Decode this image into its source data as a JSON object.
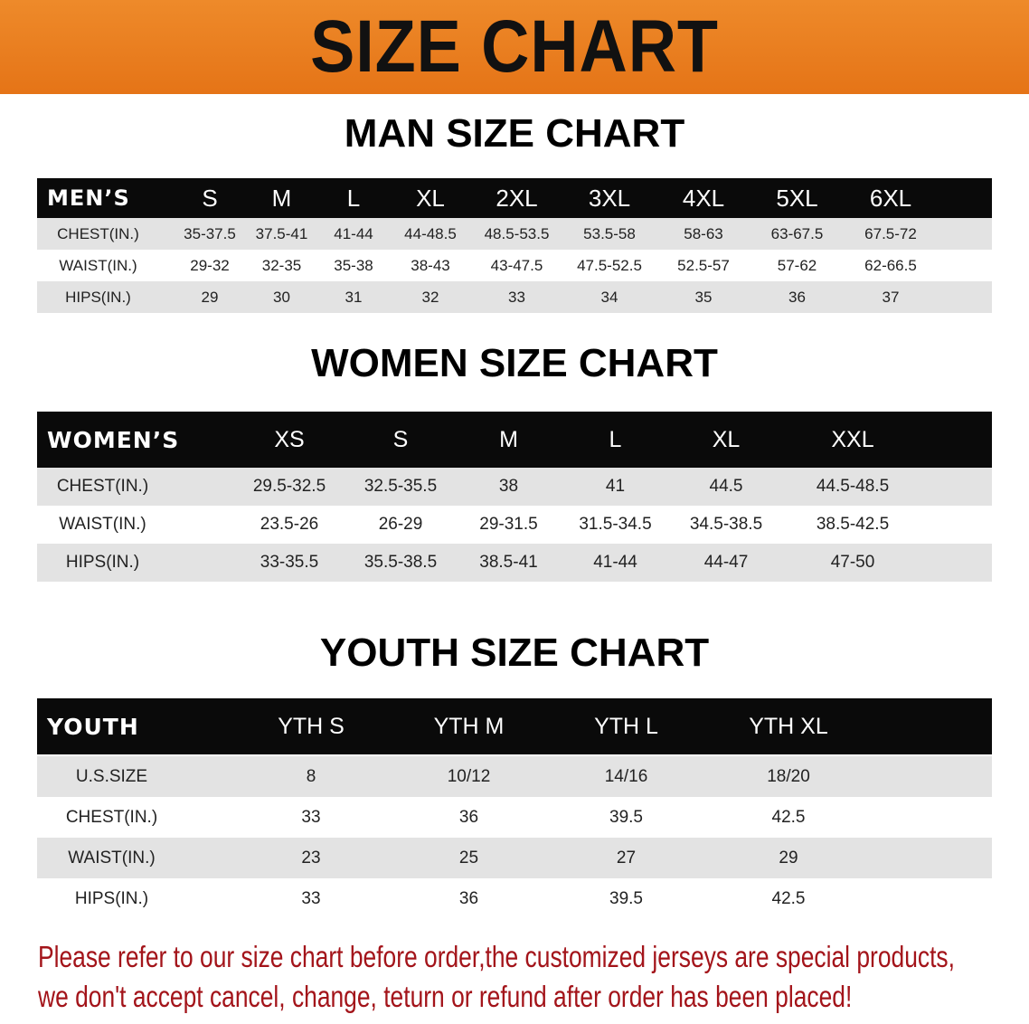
{
  "banner_title": "SIZE CHART",
  "colors": {
    "banner": "#e8781a",
    "header_row": "#0a0a0a",
    "shaded_row": "#e3e3e3",
    "notice_text": "#a3141a"
  },
  "men": {
    "title": "MAN SIZE CHART",
    "header": [
      "MEN’S",
      "S",
      "M",
      "L",
      "XL",
      "2XL",
      "3XL",
      "4XL",
      "5XL",
      "6XL"
    ],
    "rows": [
      [
        "CHEST(IN.)",
        "35-37.5",
        "37.5-41",
        "41-44",
        "44-48.5",
        "48.5-53.5",
        "53.5-58",
        "58-63",
        "63-67.5",
        "67.5-72"
      ],
      [
        "WAIST(IN.)",
        "29-32",
        "32-35",
        "35-38",
        "38-43",
        "43-47.5",
        "47.5-52.5",
        "52.5-57",
        "57-62",
        "62-66.5"
      ],
      [
        "HIPS(IN.)",
        "29",
        "30",
        "31",
        "32",
        "33",
        "34",
        "35",
        "36",
        "37"
      ]
    ]
  },
  "women": {
    "title": "WOMEN SIZE CHART",
    "header": [
      "WOMEN’S",
      "XS",
      "S",
      "M",
      "L",
      "XL",
      "XXL"
    ],
    "rows": [
      [
        "CHEST(IN.)",
        "29.5-32.5",
        "32.5-35.5",
        "38",
        "41",
        "44.5",
        "44.5-48.5"
      ],
      [
        "WAIST(IN.)",
        "23.5-26",
        "26-29",
        "29-31.5",
        "31.5-34.5",
        "34.5-38.5",
        "38.5-42.5"
      ],
      [
        "HIPS(IN.)",
        "33-35.5",
        "35.5-38.5",
        "38.5-41",
        "41-44",
        "44-47",
        "47-50"
      ]
    ]
  },
  "youth": {
    "title": "YOUTH SIZE CHART",
    "header": [
      "YOUTH",
      "YTH S",
      "YTH M",
      "YTH L",
      "YTH XL"
    ],
    "rows": [
      [
        "U.S.SIZE",
        "8",
        "10/12",
        "14/16",
        "18/20"
      ],
      [
        "CHEST(IN.)",
        "33",
        "36",
        "39.5",
        "42.5"
      ],
      [
        "WAIST(IN.)",
        "23",
        "25",
        "27",
        "29"
      ],
      [
        "HIPS(IN.)",
        "33",
        "36",
        "39.5",
        "42.5"
      ]
    ]
  },
  "notice": {
    "line1": "Please refer to our size chart before order,the customized jerseys are special products,",
    "line2": "we don't accept cancel, change, teturn or refund after order has been placed!"
  }
}
